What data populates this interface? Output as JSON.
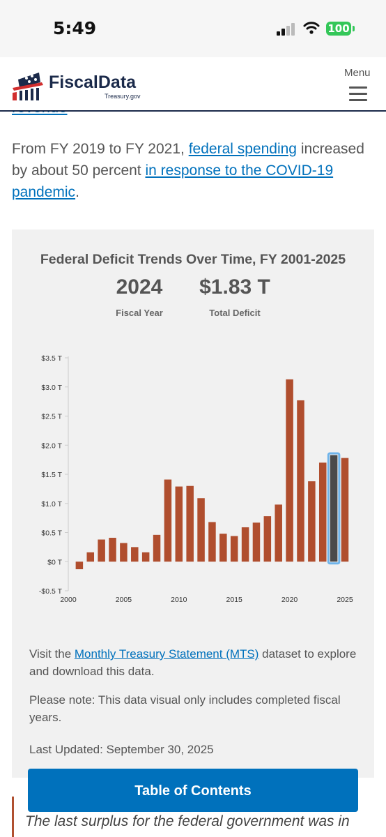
{
  "status_bar": {
    "time": "5:49",
    "battery": "100"
  },
  "header": {
    "logo_name": "FiscalData",
    "logo_sub": "Treasury.gov",
    "menu_label": "Menu"
  },
  "body": {
    "cut_link": "revenue",
    "paragraph": {
      "t1": "From FY 2019 to FY 2021, ",
      "link1": "federal spending",
      "t2": " increased by about 50 percent ",
      "link2": "in response to the COVID-19 pandemic",
      "t3": "."
    }
  },
  "chart_card": {
    "stat_year_value": "2024",
    "stat_year_label": "Fiscal Year",
    "stat_deficit_value": "$1.83 T",
    "stat_deficit_label": "Total Deficit",
    "note1_pre": "Visit the ",
    "note1_link": "Monthly Treasury Statement (MTS)",
    "note1_post": " dataset to explore and download this data.",
    "note2": "Please note: This data visual only includes completed fiscal years.",
    "last_updated": "Last Updated: September 30, 2025"
  },
  "chart_data": {
    "type": "bar",
    "title": "Federal Deficit Trends Over Time, FY 2001-2025",
    "xlabel": "",
    "ylabel": "",
    "x": [
      2001,
      2002,
      2003,
      2004,
      2005,
      2006,
      2007,
      2008,
      2009,
      2010,
      2011,
      2012,
      2013,
      2014,
      2015,
      2016,
      2017,
      2018,
      2019,
      2020,
      2021,
      2022,
      2023,
      2024,
      2025
    ],
    "values": [
      -0.13,
      0.16,
      0.38,
      0.41,
      0.32,
      0.25,
      0.16,
      0.46,
      1.41,
      1.29,
      1.3,
      1.09,
      0.68,
      0.48,
      0.44,
      0.59,
      0.67,
      0.78,
      0.98,
      3.13,
      2.77,
      1.38,
      1.7,
      1.83,
      1.78
    ],
    "highlighted_x": 2024,
    "ylim": [
      -0.5,
      3.5
    ],
    "yticks": [
      -0.5,
      0,
      0.5,
      1.0,
      1.5,
      2.0,
      2.5,
      3.0,
      3.5
    ],
    "ytick_labels": [
      "-$0.5 T",
      "$0 T",
      "$0.5 T",
      "$1.0 T",
      "$1.5 T",
      "$2.0 T",
      "$2.5 T",
      "$3.0 T",
      "$3.5 T"
    ],
    "xticks": [
      2000,
      2005,
      2010,
      2015,
      2020,
      2025
    ],
    "xtick_labels": [
      "2000",
      "2005",
      "2010",
      "2015",
      "2020",
      "2025"
    ],
    "grid": false,
    "colors": {
      "bar": "#b04e2e",
      "highlight": "#4a4a4a",
      "highlight_outline": "#6fb4ea"
    }
  },
  "bottom": {
    "toc_label": "Table of Contents",
    "quote": "The last surplus for the federal government was in"
  }
}
